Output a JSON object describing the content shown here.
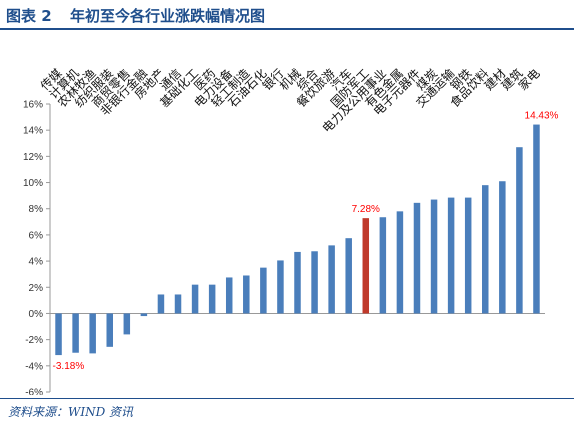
{
  "figure": {
    "label": "图表 2",
    "title": "年初至今各行业涨跌幅情况图",
    "source": "资料来源：WIND 资讯"
  },
  "chart_data": {
    "type": "bar",
    "categories": [
      "传媒",
      "计算机",
      "农林牧渔",
      "纺织服装",
      "商贸零售",
      "非银行金融",
      "房地产",
      "通信",
      "基础化工",
      "医药",
      "电力设备",
      "轻工制造",
      "石油石化",
      "银行",
      "机械",
      "综合",
      "餐饮旅游",
      "汽车",
      "国防军工",
      "电力及公用事业",
      "有色金属",
      "电子元器件",
      "煤炭",
      "交通运输",
      "钢铁",
      "食品饮料",
      "建材",
      "建筑",
      "家电"
    ],
    "values": [
      -3.18,
      -3.0,
      -3.05,
      -2.55,
      -1.6,
      -0.2,
      1.45,
      1.45,
      2.2,
      2.2,
      2.75,
      2.9,
      3.5,
      4.05,
      4.7,
      4.75,
      5.2,
      5.75,
      7.28,
      7.35,
      7.8,
      8.45,
      8.7,
      8.85,
      8.85,
      9.8,
      10.1,
      12.7,
      14.43
    ],
    "highlight_index": 18,
    "highlight_color": "#c0392b",
    "bar_color": "#4a7ebb",
    "data_labels": [
      {
        "index": 0,
        "text": "-3.18%"
      },
      {
        "index": 18,
        "text": "7.28%"
      },
      {
        "index": 28,
        "text": "14.43%"
      }
    ],
    "ylim": [
      -6,
      16
    ],
    "yticks": [
      -6,
      -4,
      -2,
      0,
      2,
      4,
      6,
      8,
      10,
      12,
      14,
      16
    ],
    "ytick_labels": [
      "-6%",
      "-4%",
      "-2%",
      "0%",
      "2%",
      "4%",
      "6%",
      "8%",
      "10%",
      "12%",
      "14%",
      "16%"
    ],
    "label_color": "#ff0000",
    "axis_color": "#999999",
    "grid": false
  }
}
